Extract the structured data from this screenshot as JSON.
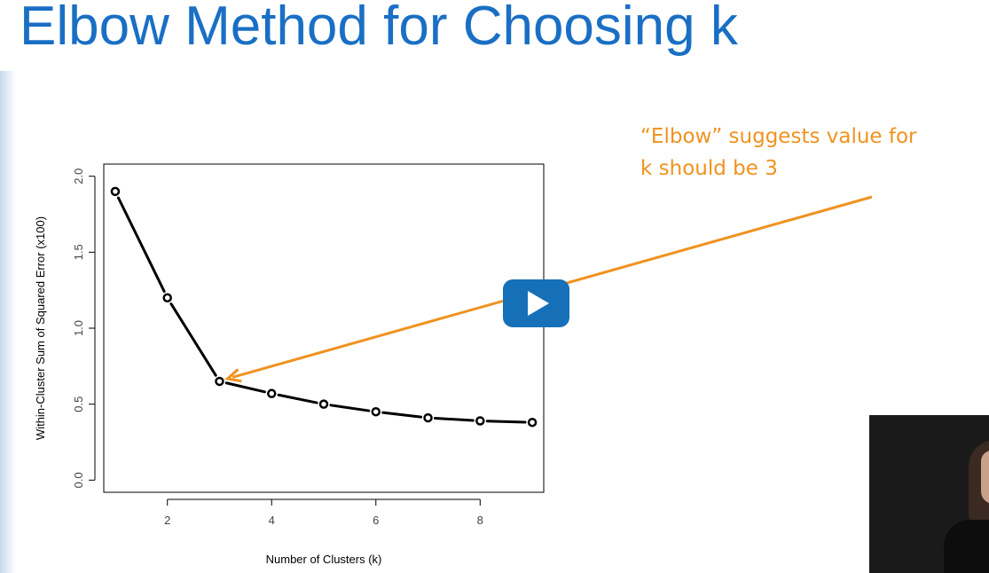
{
  "slide": {
    "title": "Elbow Method for Choosing k"
  },
  "annotation": {
    "line1": "“Elbow” suggests value for",
    "line2": "k should be 3",
    "color": "#f0921f"
  },
  "colors": {
    "title": "#1a6fc4",
    "play_button": "#1670b8"
  },
  "icons": {
    "play": "play-icon"
  },
  "chart_data": {
    "type": "line",
    "x": [
      1,
      2,
      3,
      4,
      5,
      6,
      7,
      8,
      9
    ],
    "y": [
      1.9,
      1.2,
      0.65,
      0.57,
      0.5,
      0.45,
      0.41,
      0.39,
      0.38
    ],
    "markers": "open-circle",
    "xlabel": "Number of Clusters (k)",
    "ylabel": "Within-Cluster Sum of Squared Error (x100)",
    "xticks": [
      2,
      4,
      6,
      8
    ],
    "yticks": [
      "0.0",
      "0.5",
      "1.0",
      "1.5",
      "2.0"
    ],
    "xlim": [
      0.78,
      9.22
    ],
    "ylim": [
      -0.08,
      2.08
    ],
    "grid": false,
    "legend": "none",
    "arrow_target": {
      "x": 3,
      "y": 0.65
    }
  }
}
